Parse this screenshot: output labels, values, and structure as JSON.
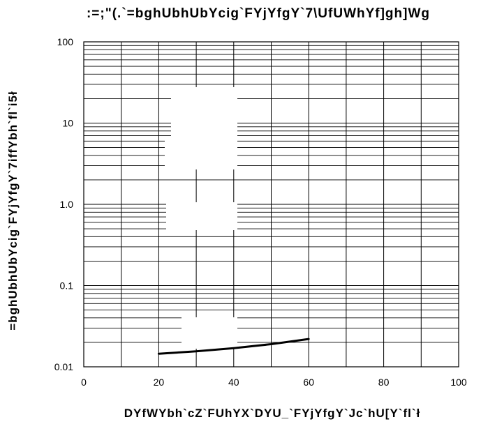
{
  "chart_data": {
    "type": "line",
    "title": ":=;\"(.`=bghUbhUbYcig`FYjYfgY`7\\UfUWhYf]gh]Wg",
    "xlabel": "DYfWYbh`cZ`FUhYX`DYU_`FYjYfgY`Jc`hU[Y`fl`ł",
    "ylabel": "=bghUbhUbYcig`FYjYfgY`7iffYbh`fl`i5ł",
    "x_scale": "linear",
    "y_scale": "log",
    "xlim": [
      0,
      100
    ],
    "ylim": [
      0.01,
      100
    ],
    "x_ticks": [
      "0",
      "20",
      "40",
      "60",
      "80",
      "100"
    ],
    "y_ticks": [
      "100",
      "10",
      "1.0",
      "0.1",
      "0.01"
    ],
    "grid": true,
    "series": [
      {
        "x": [
          20,
          30,
          40,
          50,
          60
        ],
        "y": [
          0.0145,
          0.0155,
          0.017,
          0.019,
          0.022
        ]
      }
    ],
    "line_color": "#000000",
    "grid_color": "#000000"
  }
}
